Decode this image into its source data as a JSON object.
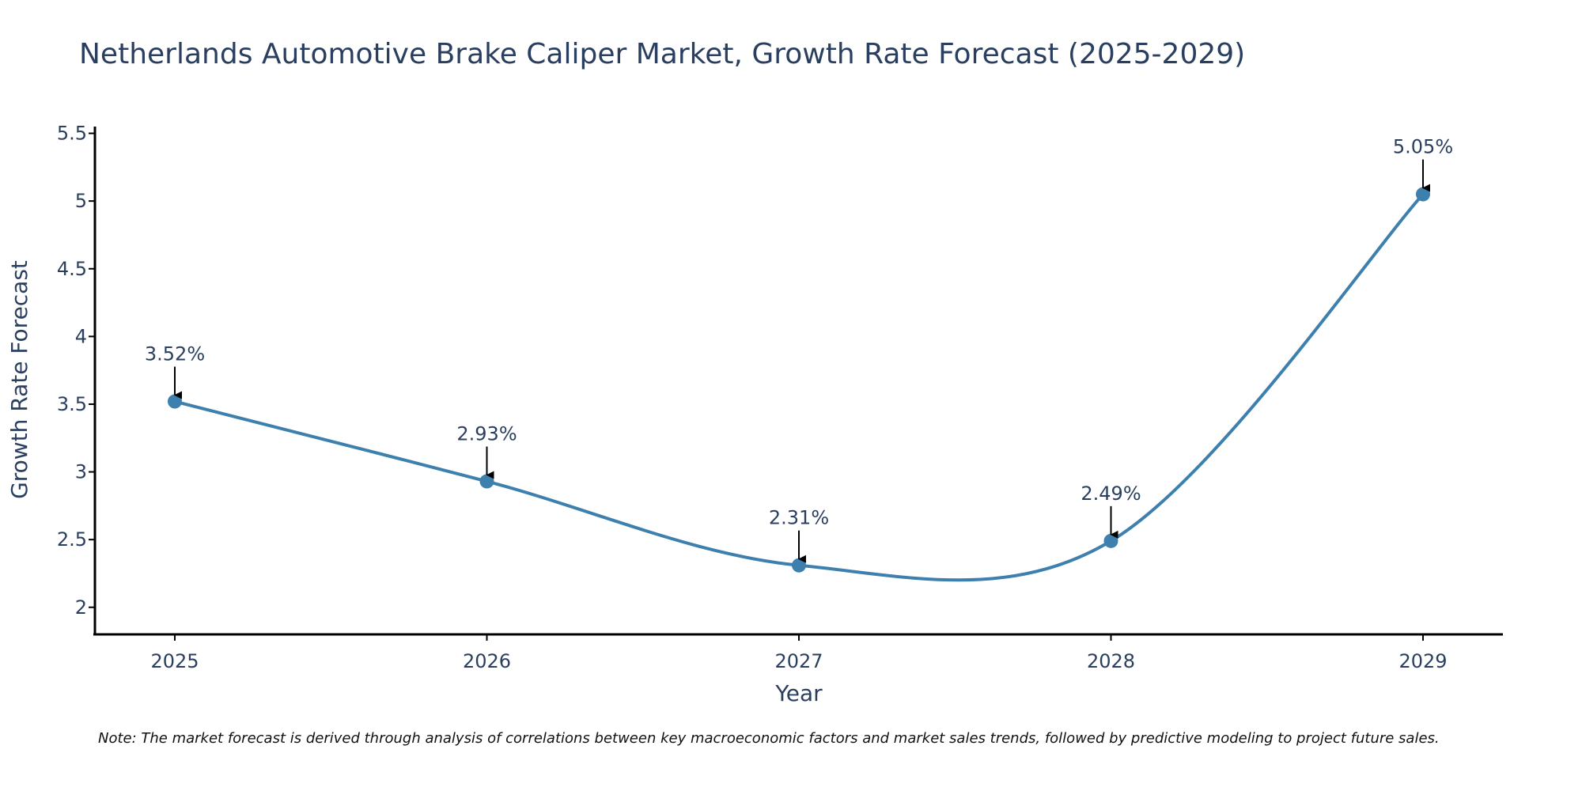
{
  "chart_data": {
    "type": "line",
    "title": "Netherlands Automotive Brake Caliper Market, Growth Rate Forecast (2025-2029)",
    "xlabel": "Year",
    "ylabel": "Growth Rate Forecast",
    "categories": [
      "2025",
      "2026",
      "2027",
      "2028",
      "2029"
    ],
    "series": [
      {
        "name": "Growth Rate Forecast",
        "values": [
          3.52,
          2.93,
          2.31,
          2.49,
          5.05
        ],
        "labels": [
          "3.52%",
          "2.93%",
          "2.31%",
          "2.49%",
          "5.05%"
        ],
        "color": "#3d7fad"
      }
    ],
    "ylim": [
      1.8,
      5.55
    ],
    "yticks": [
      2,
      2.5,
      3,
      3.5,
      4,
      4.5,
      5,
      5.5
    ],
    "ytick_labels": [
      "2",
      "2.5",
      "3",
      "3.5",
      "4",
      "4.5",
      "5",
      "5.5"
    ],
    "grid": false,
    "line_shape": "smooth",
    "note": "Note: The market forecast is derived through analysis of correlations between key macroeconomic factors and market sales trends, followed by predictive modeling to project future sales."
  },
  "colors": {
    "line": "#3d7fad",
    "marker": "#3d7fad",
    "axis": "#000000",
    "text": "#2a3f5f",
    "arrow": "#000000"
  }
}
